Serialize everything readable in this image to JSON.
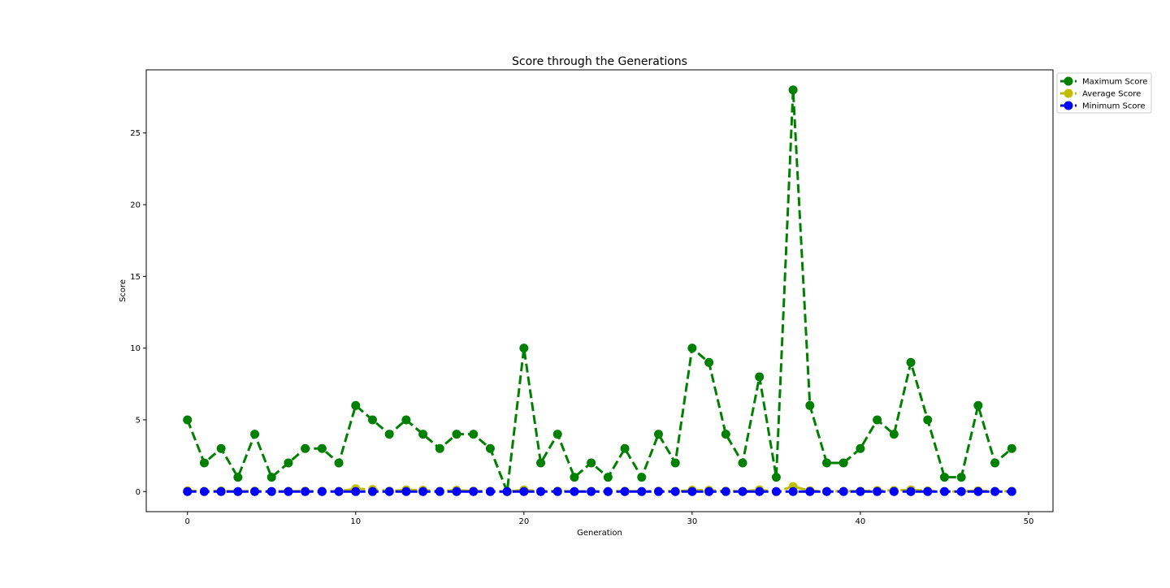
{
  "chart_data": {
    "type": "line",
    "title": "Score through the Generations",
    "xlabel": "Generation",
    "ylabel": "Score",
    "xlim": [
      -2.45,
      51.45
    ],
    "ylim": [
      -1.4,
      29.4
    ],
    "xticks": [
      0,
      10,
      20,
      30,
      40,
      50
    ],
    "yticks": [
      0,
      5,
      10,
      15,
      20,
      25
    ],
    "grid": false,
    "legend_position": "upper-right-outside",
    "x": [
      0,
      1,
      2,
      3,
      4,
      5,
      6,
      7,
      8,
      9,
      10,
      11,
      12,
      13,
      14,
      15,
      16,
      17,
      18,
      19,
      20,
      21,
      22,
      23,
      24,
      25,
      26,
      27,
      28,
      29,
      30,
      31,
      32,
      33,
      34,
      35,
      36,
      37,
      38,
      39,
      40,
      41,
      42,
      43,
      44,
      45,
      46,
      47,
      48,
      49
    ],
    "series": [
      {
        "name": "Maximum Score",
        "color": "#008000",
        "values": [
          5,
          2,
          3,
          1,
          4,
          1,
          2,
          3,
          3,
          2,
          6,
          5,
          4,
          5,
          4,
          3,
          4,
          4,
          3,
          0,
          10,
          2,
          4,
          1,
          2,
          1,
          3,
          1,
          4,
          2,
          10,
          9,
          4,
          2,
          8,
          1,
          28,
          6,
          2,
          2,
          3,
          5,
          4,
          9,
          5,
          1,
          1,
          6,
          2,
          3
        ]
      },
      {
        "name": "Average Score",
        "color": "#bfbf00",
        "values": [
          0.05,
          0.02,
          0.05,
          0.01,
          0.04,
          0.01,
          0.02,
          0.03,
          0.03,
          0.02,
          0.2,
          0.15,
          0.04,
          0.12,
          0.1,
          0.03,
          0.1,
          0.04,
          0.03,
          0,
          0.12,
          0.02,
          0.04,
          0.01,
          0.02,
          0.01,
          0.03,
          0.01,
          0.04,
          0.02,
          0.1,
          0.09,
          0.04,
          0.02,
          0.12,
          0.01,
          0.35,
          0.06,
          0.02,
          0.02,
          0.03,
          0.08,
          0.08,
          0.12,
          0.05,
          0.01,
          0.01,
          0.06,
          0.02,
          0.03
        ]
      },
      {
        "name": "Minimum Score",
        "color": "#0000ff",
        "values": [
          0,
          0,
          0,
          0,
          0,
          0,
          0,
          0,
          0,
          0,
          0,
          0,
          0,
          0,
          0,
          0,
          0,
          0,
          0,
          0,
          0,
          0,
          0,
          0,
          0,
          0,
          0,
          0,
          0,
          0,
          0,
          0,
          0,
          0,
          0,
          0,
          0,
          0,
          0,
          0,
          0,
          0,
          0,
          0,
          0,
          0,
          0,
          0,
          0,
          0
        ]
      }
    ]
  }
}
